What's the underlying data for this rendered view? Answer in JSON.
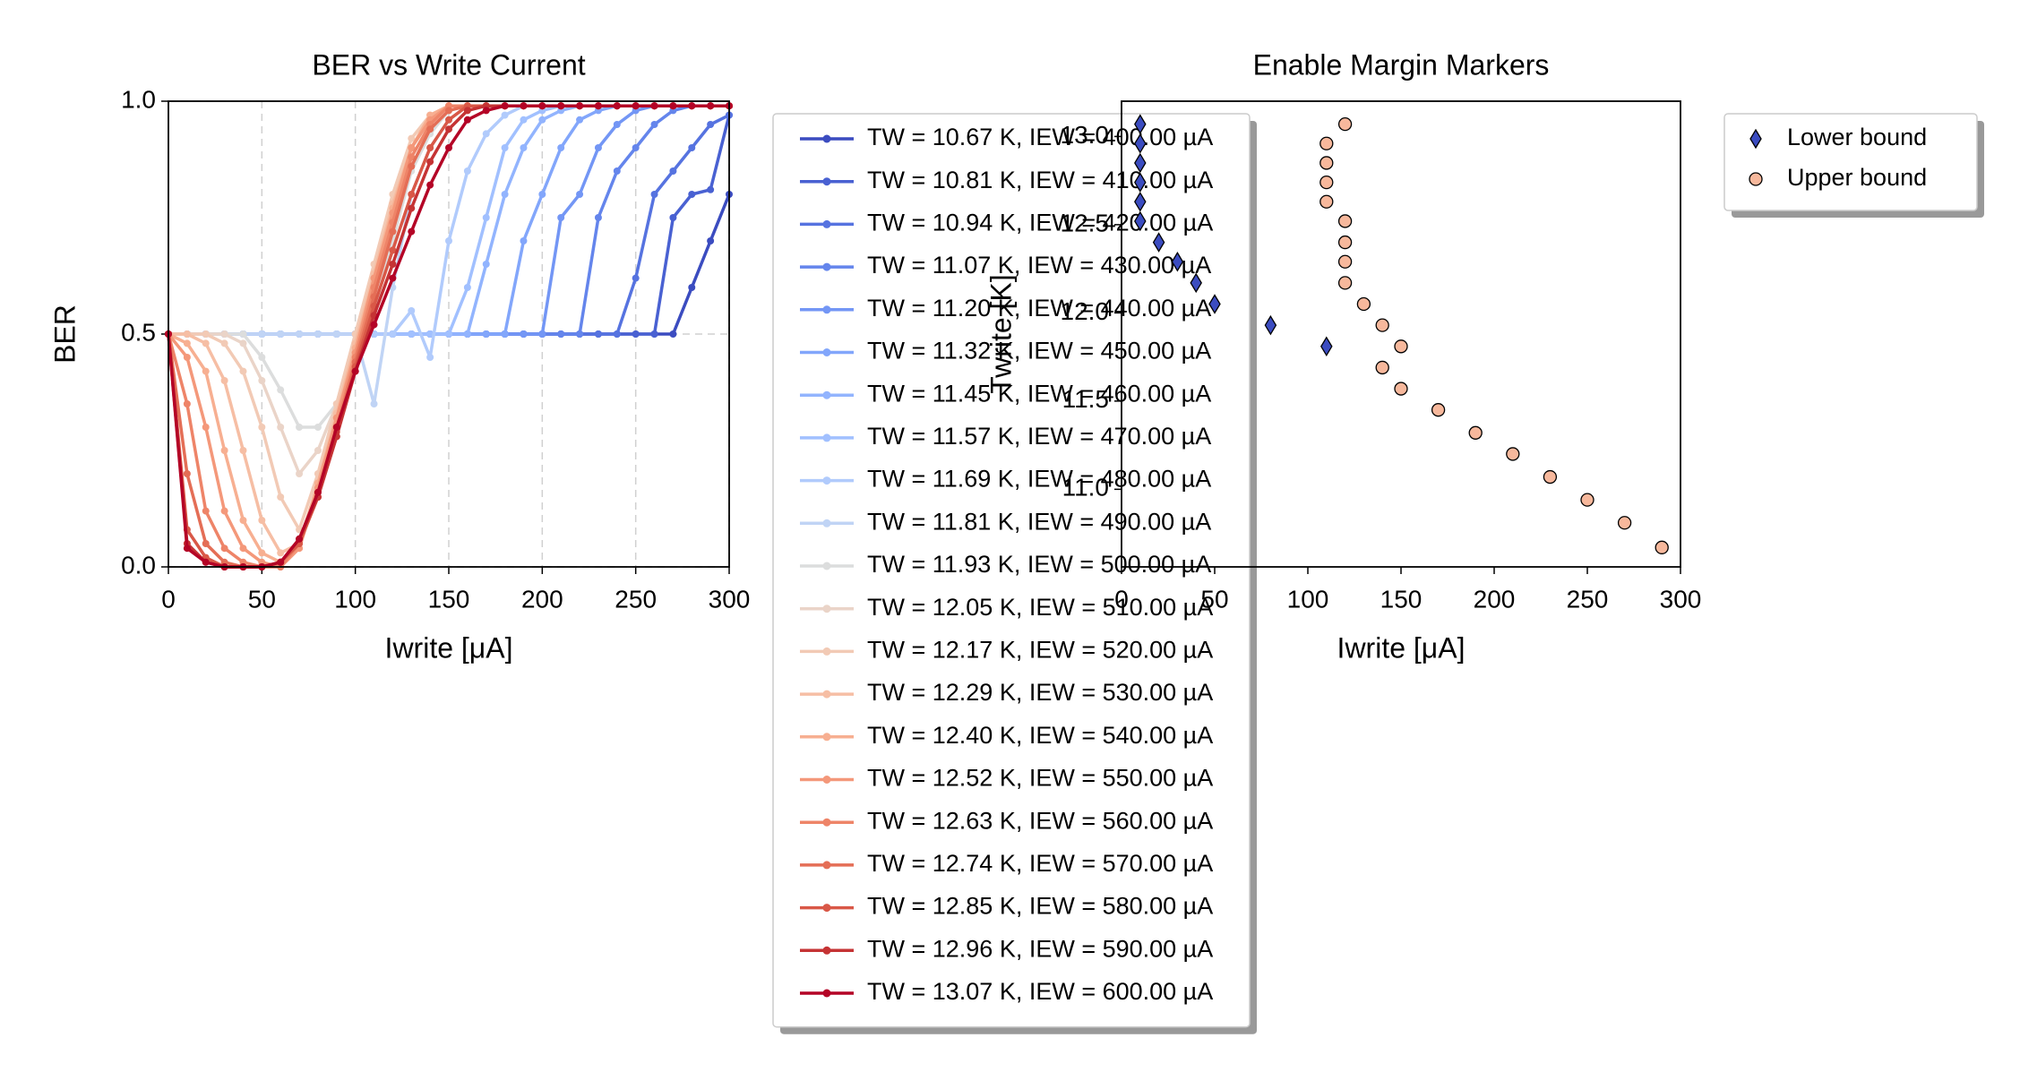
{
  "chart_data": [
    {
      "type": "line",
      "title": "BER vs Write Current",
      "xlabel": "Iwrite [μA]",
      "ylabel": "BER",
      "xlim": [
        0,
        300
      ],
      "ylim": [
        0,
        1
      ],
      "xticks": [
        0,
        50,
        100,
        150,
        200,
        250,
        300
      ],
      "yticks": [
        {
          "value": 0,
          "label": "0.0"
        },
        {
          "value": 0.5,
          "label": "0.5"
        },
        {
          "value": 1,
          "label": "1.0"
        }
      ],
      "grid": true,
      "legend": "outside right",
      "x": [
        0,
        10,
        20,
        30,
        40,
        50,
        60,
        70,
        80,
        90,
        100,
        110,
        120,
        130,
        140,
        150,
        160,
        170,
        180,
        190,
        200,
        210,
        220,
        230,
        240,
        250,
        260,
        270,
        280,
        290,
        300
      ],
      "series": [
        {
          "name": "TW = 10.67 K, IEW = 400.00 µA",
          "color": "#3b4cc0",
          "values": [
            0.5,
            0.5,
            0.5,
            0.5,
            0.5,
            0.5,
            0.5,
            0.5,
            0.5,
            0.5,
            0.5,
            0.5,
            0.5,
            0.5,
            0.5,
            0.5,
            0.5,
            0.5,
            0.5,
            0.5,
            0.5,
            0.5,
            0.5,
            0.5,
            0.5,
            0.5,
            0.5,
            0.5,
            0.6,
            0.7,
            0.8
          ]
        },
        {
          "name": "TW = 10.81 K, IEW = 410.00 µA",
          "color": "#4961d2",
          "values": [
            0.5,
            0.5,
            0.5,
            0.5,
            0.5,
            0.5,
            0.5,
            0.5,
            0.5,
            0.5,
            0.5,
            0.5,
            0.5,
            0.5,
            0.5,
            0.5,
            0.5,
            0.5,
            0.5,
            0.5,
            0.5,
            0.5,
            0.5,
            0.5,
            0.5,
            0.5,
            0.5,
            0.75,
            0.8,
            0.81,
            0.97
          ]
        },
        {
          "name": "TW = 10.94 K, IEW = 420.00 µA",
          "color": "#5673e0",
          "values": [
            0.5,
            0.5,
            0.5,
            0.5,
            0.5,
            0.5,
            0.5,
            0.5,
            0.5,
            0.5,
            0.5,
            0.5,
            0.5,
            0.5,
            0.5,
            0.5,
            0.5,
            0.5,
            0.5,
            0.5,
            0.5,
            0.5,
            0.5,
            0.5,
            0.5,
            0.62,
            0.8,
            0.85,
            0.9,
            0.95,
            0.97
          ]
        },
        {
          "name": "TW = 11.07 K, IEW = 430.00 µA",
          "color": "#6485ec",
          "values": [
            0.5,
            0.5,
            0.5,
            0.5,
            0.5,
            0.5,
            0.5,
            0.5,
            0.5,
            0.5,
            0.5,
            0.5,
            0.5,
            0.5,
            0.5,
            0.5,
            0.5,
            0.5,
            0.5,
            0.5,
            0.5,
            0.5,
            0.5,
            0.75,
            0.85,
            0.9,
            0.95,
            0.98,
            0.99,
            0.99,
            0.99
          ]
        },
        {
          "name": "TW = 11.20 K, IEW = 440.00 µA",
          "color": "#7396f5",
          "values": [
            0.5,
            0.5,
            0.5,
            0.5,
            0.5,
            0.5,
            0.5,
            0.5,
            0.5,
            0.5,
            0.5,
            0.5,
            0.5,
            0.5,
            0.5,
            0.5,
            0.5,
            0.5,
            0.5,
            0.5,
            0.5,
            0.75,
            0.8,
            0.9,
            0.95,
            0.98,
            0.99,
            0.99,
            0.99,
            0.99,
            0.99
          ]
        },
        {
          "name": "TW = 11.32 K, IEW = 450.00 µA",
          "color": "#82a6fb",
          "values": [
            0.5,
            0.5,
            0.5,
            0.5,
            0.5,
            0.5,
            0.5,
            0.5,
            0.5,
            0.5,
            0.5,
            0.5,
            0.5,
            0.5,
            0.5,
            0.5,
            0.5,
            0.5,
            0.5,
            0.7,
            0.8,
            0.9,
            0.96,
            0.98,
            0.99,
            0.99,
            0.99,
            0.99,
            0.99,
            0.99,
            0.99
          ]
        },
        {
          "name": "TW = 11.45 K, IEW = 460.00 µA",
          "color": "#92b4fe",
          "values": [
            0.5,
            0.5,
            0.5,
            0.5,
            0.5,
            0.5,
            0.5,
            0.5,
            0.5,
            0.5,
            0.5,
            0.5,
            0.5,
            0.5,
            0.5,
            0.5,
            0.5,
            0.65,
            0.8,
            0.9,
            0.96,
            0.98,
            0.99,
            0.99,
            0.99,
            0.99,
            0.99,
            0.99,
            0.99,
            0.99,
            0.99
          ]
        },
        {
          "name": "TW = 11.57 K, IEW = 470.00 µA",
          "color": "#a1c0ff",
          "values": [
            0.5,
            0.5,
            0.5,
            0.5,
            0.5,
            0.5,
            0.5,
            0.5,
            0.5,
            0.5,
            0.5,
            0.5,
            0.5,
            0.5,
            0.5,
            0.5,
            0.6,
            0.75,
            0.9,
            0.96,
            0.98,
            0.99,
            0.99,
            0.99,
            0.99,
            0.99,
            0.99,
            0.99,
            0.99,
            0.99,
            0.99
          ]
        },
        {
          "name": "TW = 11.69 K, IEW = 480.00 µA",
          "color": "#b1cbfc",
          "values": [
            0.5,
            0.5,
            0.5,
            0.5,
            0.5,
            0.5,
            0.5,
            0.5,
            0.5,
            0.5,
            0.5,
            0.5,
            0.5,
            0.55,
            0.45,
            0.7,
            0.85,
            0.93,
            0.97,
            0.99,
            0.99,
            0.99,
            0.99,
            0.99,
            0.99,
            0.99,
            0.99,
            0.99,
            0.99,
            0.99,
            0.99
          ]
        },
        {
          "name": "TW = 11.81 K, IEW = 490.00 µA",
          "color": "#c0d4f5",
          "values": [
            0.5,
            0.5,
            0.5,
            0.5,
            0.5,
            0.5,
            0.5,
            0.5,
            0.5,
            0.5,
            0.5,
            0.35,
            0.6,
            0.8,
            0.9,
            0.96,
            0.99,
            0.99,
            0.99,
            0.99,
            0.99,
            0.99,
            0.99,
            0.99,
            0.99,
            0.99,
            0.99,
            0.99,
            0.99,
            0.99,
            0.99
          ]
        },
        {
          "name": "TW = 11.93 K, IEW = 500.00 µA",
          "color": "#dcdddd",
          "values": [
            0.5,
            0.5,
            0.5,
            0.5,
            0.5,
            0.45,
            0.38,
            0.3,
            0.3,
            0.35,
            0.45,
            0.55,
            0.7,
            0.85,
            0.93,
            0.98,
            0.99,
            0.99,
            0.99,
            0.99,
            0.99,
            0.99,
            0.99,
            0.99,
            0.99,
            0.99,
            0.99,
            0.99,
            0.99,
            0.99,
            0.99
          ]
        },
        {
          "name": "TW = 12.05 K, IEW = 510.00 µA",
          "color": "#ead4c8",
          "values": [
            0.5,
            0.5,
            0.5,
            0.5,
            0.48,
            0.4,
            0.3,
            0.2,
            0.25,
            0.35,
            0.5,
            0.62,
            0.78,
            0.9,
            0.96,
            0.99,
            0.99,
            0.99,
            0.99,
            0.99,
            0.99,
            0.99,
            0.99,
            0.99,
            0.99,
            0.99,
            0.99,
            0.99,
            0.99,
            0.99,
            0.99
          ]
        },
        {
          "name": "TW = 12.17 K, IEW = 520.00 µA",
          "color": "#f2cab5",
          "values": [
            0.5,
            0.5,
            0.5,
            0.48,
            0.42,
            0.3,
            0.15,
            0.08,
            0.2,
            0.35,
            0.5,
            0.65,
            0.8,
            0.92,
            0.97,
            0.99,
            0.99,
            0.99,
            0.99,
            0.99,
            0.99,
            0.99,
            0.99,
            0.99,
            0.99,
            0.99,
            0.99,
            0.99,
            0.99,
            0.99,
            0.99
          ]
        },
        {
          "name": "TW = 12.29 K, IEW = 530.00 µA",
          "color": "#f6bea4",
          "values": [
            0.5,
            0.5,
            0.48,
            0.4,
            0.25,
            0.1,
            0.03,
            0.05,
            0.18,
            0.33,
            0.48,
            0.63,
            0.78,
            0.9,
            0.96,
            0.99,
            0.99,
            0.99,
            0.99,
            0.99,
            0.99,
            0.99,
            0.99,
            0.99,
            0.99,
            0.99,
            0.99,
            0.99,
            0.99,
            0.99,
            0.99
          ]
        },
        {
          "name": "TW = 12.40 K, IEW = 540.00 µA",
          "color": "#f7af91",
          "values": [
            0.5,
            0.48,
            0.42,
            0.25,
            0.1,
            0.03,
            0.01,
            0.04,
            0.18,
            0.32,
            0.47,
            0.62,
            0.77,
            0.9,
            0.97,
            0.99,
            0.99,
            0.99,
            0.99,
            0.99,
            0.99,
            0.99,
            0.99,
            0.99,
            0.99,
            0.99,
            0.99,
            0.99,
            0.99,
            0.99,
            0.99
          ]
        },
        {
          "name": "TW = 12.52 K, IEW = 550.00 µA",
          "color": "#f4987a",
          "values": [
            0.5,
            0.45,
            0.3,
            0.12,
            0.04,
            0.01,
            0,
            0.04,
            0.17,
            0.32,
            0.46,
            0.62,
            0.76,
            0.9,
            0.96,
            0.99,
            0.99,
            0.99,
            0.99,
            0.99,
            0.99,
            0.99,
            0.99,
            0.99,
            0.99,
            0.99,
            0.99,
            0.99,
            0.99,
            0.99,
            0.99
          ]
        },
        {
          "name": "TW = 12.63 K, IEW = 560.00 µA",
          "color": "#ee8468",
          "values": [
            0.5,
            0.35,
            0.12,
            0.04,
            0.01,
            0,
            0,
            0.05,
            0.16,
            0.3,
            0.45,
            0.6,
            0.74,
            0.88,
            0.95,
            0.99,
            0.99,
            0.99,
            0.99,
            0.99,
            0.99,
            0.99,
            0.99,
            0.99,
            0.99,
            0.99,
            0.99,
            0.99,
            0.99,
            0.99,
            0.99
          ]
        },
        {
          "name": "TW = 12.74 K, IEW = 570.00 µA",
          "color": "#e46e56",
          "values": [
            0.5,
            0.2,
            0.05,
            0.01,
            0,
            0,
            0.01,
            0.05,
            0.15,
            0.29,
            0.44,
            0.58,
            0.72,
            0.86,
            0.94,
            0.98,
            0.99,
            0.99,
            0.99,
            0.99,
            0.99,
            0.99,
            0.99,
            0.99,
            0.99,
            0.99,
            0.99,
            0.99,
            0.99,
            0.99,
            0.99
          ]
        },
        {
          "name": "TW = 12.85 K, IEW = 580.00 µA",
          "color": "#d95847",
          "values": [
            0.5,
            0.08,
            0.02,
            0,
            0,
            0,
            0.01,
            0.05,
            0.15,
            0.28,
            0.43,
            0.56,
            0.68,
            0.8,
            0.9,
            0.96,
            0.99,
            0.99,
            0.99,
            0.99,
            0.99,
            0.99,
            0.99,
            0.99,
            0.99,
            0.99,
            0.99,
            0.99,
            0.99,
            0.99,
            0.99
          ]
        },
        {
          "name": "TW = 12.96 K, IEW = 590.00 µA",
          "color": "#c53334",
          "values": [
            0.5,
            0.05,
            0.01,
            0,
            0,
            0,
            0.01,
            0.06,
            0.15,
            0.28,
            0.42,
            0.54,
            0.65,
            0.77,
            0.87,
            0.94,
            0.98,
            0.99,
            0.99,
            0.99,
            0.99,
            0.99,
            0.99,
            0.99,
            0.99,
            0.99,
            0.99,
            0.99,
            0.99,
            0.99,
            0.99
          ]
        },
        {
          "name": "TW = 13.07 K, IEW = 600.00 µA",
          "color": "#b40426",
          "values": [
            0.5,
            0.04,
            0.01,
            0,
            0,
            0,
            0.01,
            0.06,
            0.16,
            0.3,
            0.42,
            0.52,
            0.62,
            0.72,
            0.82,
            0.9,
            0.96,
            0.98,
            0.99,
            0.99,
            0.99,
            0.99,
            0.99,
            0.99,
            0.99,
            0.99,
            0.99,
            0.99,
            0.99,
            0.99,
            0.99
          ]
        }
      ]
    },
    {
      "type": "scatter",
      "title": "Enable Margin Markers",
      "xlabel": "Iwrite [μA]",
      "ylabel": "Twrite [K]",
      "xlim": [
        0,
        300
      ],
      "ylim": [
        10.56,
        13.2
      ],
      "xticks": [
        0,
        50,
        100,
        150,
        200,
        250,
        300
      ],
      "yticks": [
        {
          "value": 11,
          "label": "11.0"
        },
        {
          "value": 11.5,
          "label": "11.5"
        },
        {
          "value": 12,
          "label": "12.0"
        },
        {
          "value": 12.5,
          "label": "12.5"
        },
        {
          "value": 13,
          "label": "13.0"
        }
      ],
      "grid": false,
      "legend": "outside right",
      "series": [
        {
          "name": "Lower bound",
          "color": "#3b4cc0",
          "marker": "diamond",
          "x": [
            10,
            10,
            10,
            10,
            10,
            10,
            20,
            30,
            40,
            50,
            80,
            110
          ],
          "values": [
            13.07,
            12.96,
            12.85,
            12.74,
            12.63,
            12.52,
            12.4,
            12.29,
            12.17,
            12.05,
            11.93,
            11.81
          ]
        },
        {
          "name": "Upper bound",
          "color": "#f7b89c",
          "marker": "circle",
          "x": [
            120,
            110,
            110,
            110,
            110,
            120,
            120,
            120,
            120,
            130,
            140,
            150,
            140,
            150,
            170,
            190,
            210,
            230,
            250,
            270,
            290
          ],
          "values": [
            13.07,
            12.96,
            12.85,
            12.74,
            12.63,
            12.52,
            12.4,
            12.29,
            12.17,
            12.05,
            11.93,
            11.81,
            11.69,
            11.57,
            11.45,
            11.32,
            11.2,
            11.07,
            10.94,
            10.81,
            10.67
          ]
        }
      ]
    }
  ]
}
